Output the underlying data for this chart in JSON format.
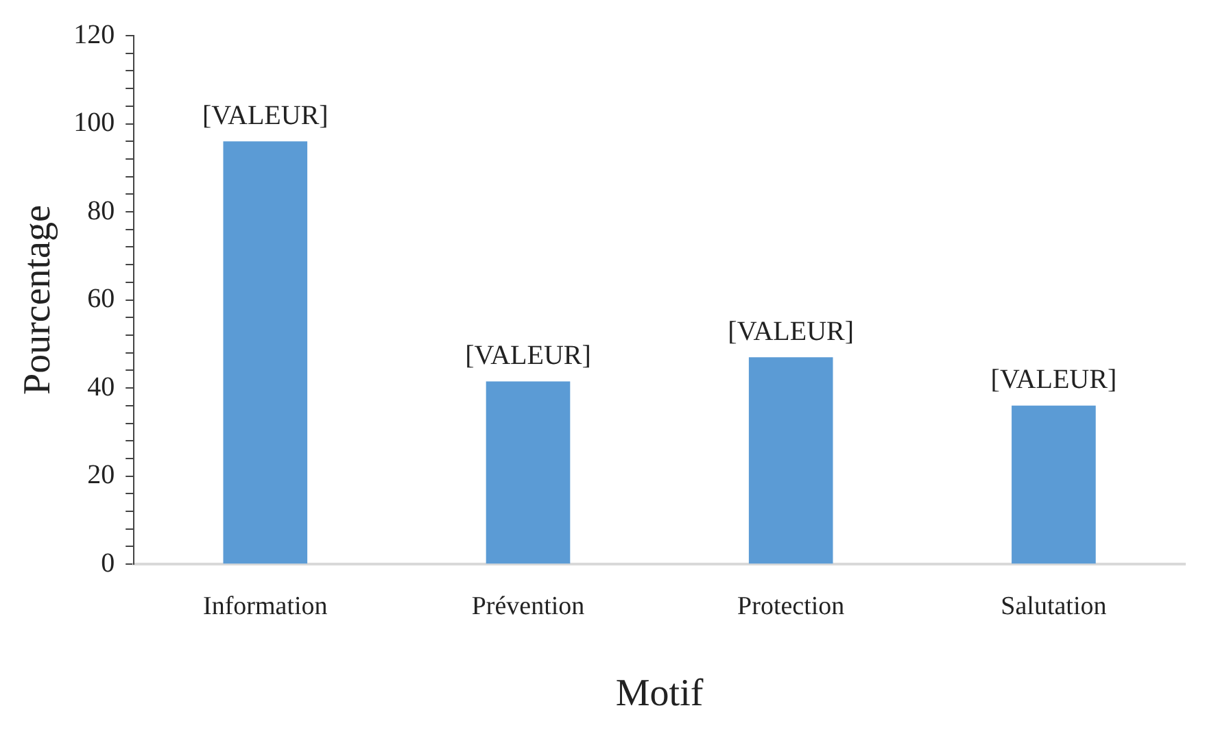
{
  "chart_data": {
    "type": "bar",
    "xlabel": "Motif",
    "ylabel": "Pourcentage",
    "categories": [
      "Information",
      "Prévention",
      "Protection",
      "Salutation"
    ],
    "values": [
      96,
      41.5,
      47,
      36
    ],
    "color": "#5b9bd5",
    "value_labels": [
      "[VALEUR]",
      "[VALEUR]",
      "[VALEUR]",
      "[VALEUR]"
    ],
    "ylim": [
      0,
      120
    ],
    "yticks": [
      0,
      {
        "value": 4,
        "label": null
      },
      {
        "value": 8,
        "label": null
      },
      {
        "value": 12,
        "label": null
      },
      {
        "value": 16,
        "label": null
      },
      20,
      {
        "value": 24,
        "label": null
      },
      {
        "value": 28,
        "label": null
      },
      {
        "value": 32,
        "label": null
      },
      {
        "value": 36,
        "label": null
      },
      40,
      {
        "value": 44,
        "label": null
      },
      {
        "value": 48,
        "label": null
      },
      {
        "value": 52,
        "label": null
      },
      {
        "value": 56,
        "label": null
      },
      60,
      {
        "value": 64,
        "label": null
      },
      {
        "value": 68,
        "label": null
      },
      {
        "value": 72,
        "label": null
      },
      {
        "value": 76,
        "label": null
      },
      80,
      {
        "value": 84,
        "label": null
      },
      {
        "value": 88,
        "label": null
      },
      {
        "value": 92,
        "label": null
      },
      {
        "value": 96,
        "label": null
      },
      100,
      {
        "value": 104,
        "label": null
      },
      {
        "value": 108,
        "label": null
      },
      {
        "value": 112,
        "label": null
      },
      {
        "value": 116,
        "label": null
      },
      120
    ],
    "grid": false,
    "legend": false
  }
}
